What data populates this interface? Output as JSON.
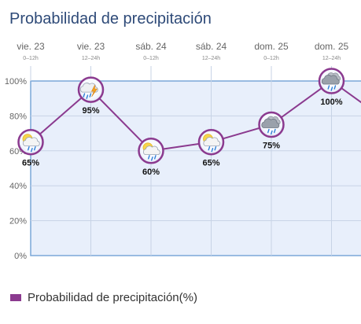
{
  "chart_data": {
    "type": "line",
    "title": "Probabilidad de precipitación",
    "categories": [
      {
        "day": "vie. 23",
        "period": "0–12h"
      },
      {
        "day": "vie. 23",
        "period": "12–24h"
      },
      {
        "day": "sáb. 24",
        "period": "0–12h"
      },
      {
        "day": "sáb. 24",
        "period": "12–24h"
      },
      {
        "day": "dom. 25",
        "period": "0–12h"
      },
      {
        "day": "dom. 25",
        "period": "12–24h"
      }
    ],
    "series": [
      {
        "name": "Probabilidad de precipitación(%)",
        "color": "#8b3a8f",
        "values": [
          65,
          95,
          60,
          65,
          75,
          100
        ],
        "value_labels": [
          "65%",
          "95%",
          "60%",
          "65%",
          "75%",
          "100%"
        ],
        "icons": [
          "sun-cloud-rain-icon",
          "cloud-storm-icon",
          "sun-cloud-rain-icon",
          "sun-cloud-rain-icon",
          "cloud-rain-icon",
          "cloud-rain-icon"
        ]
      }
    ],
    "ylim": [
      0,
      100
    ],
    "yticks": [
      "0%",
      "20%",
      "40%",
      "60%",
      "80%",
      "100%"
    ],
    "grid": true,
    "legend_position": "bottom-left",
    "colors": {
      "plot_background": "#e8effb",
      "plot_border": "#7aa7d8",
      "grid": "#c7d3e6",
      "line": "#8b3a8f",
      "title": "#2e4a78"
    }
  }
}
